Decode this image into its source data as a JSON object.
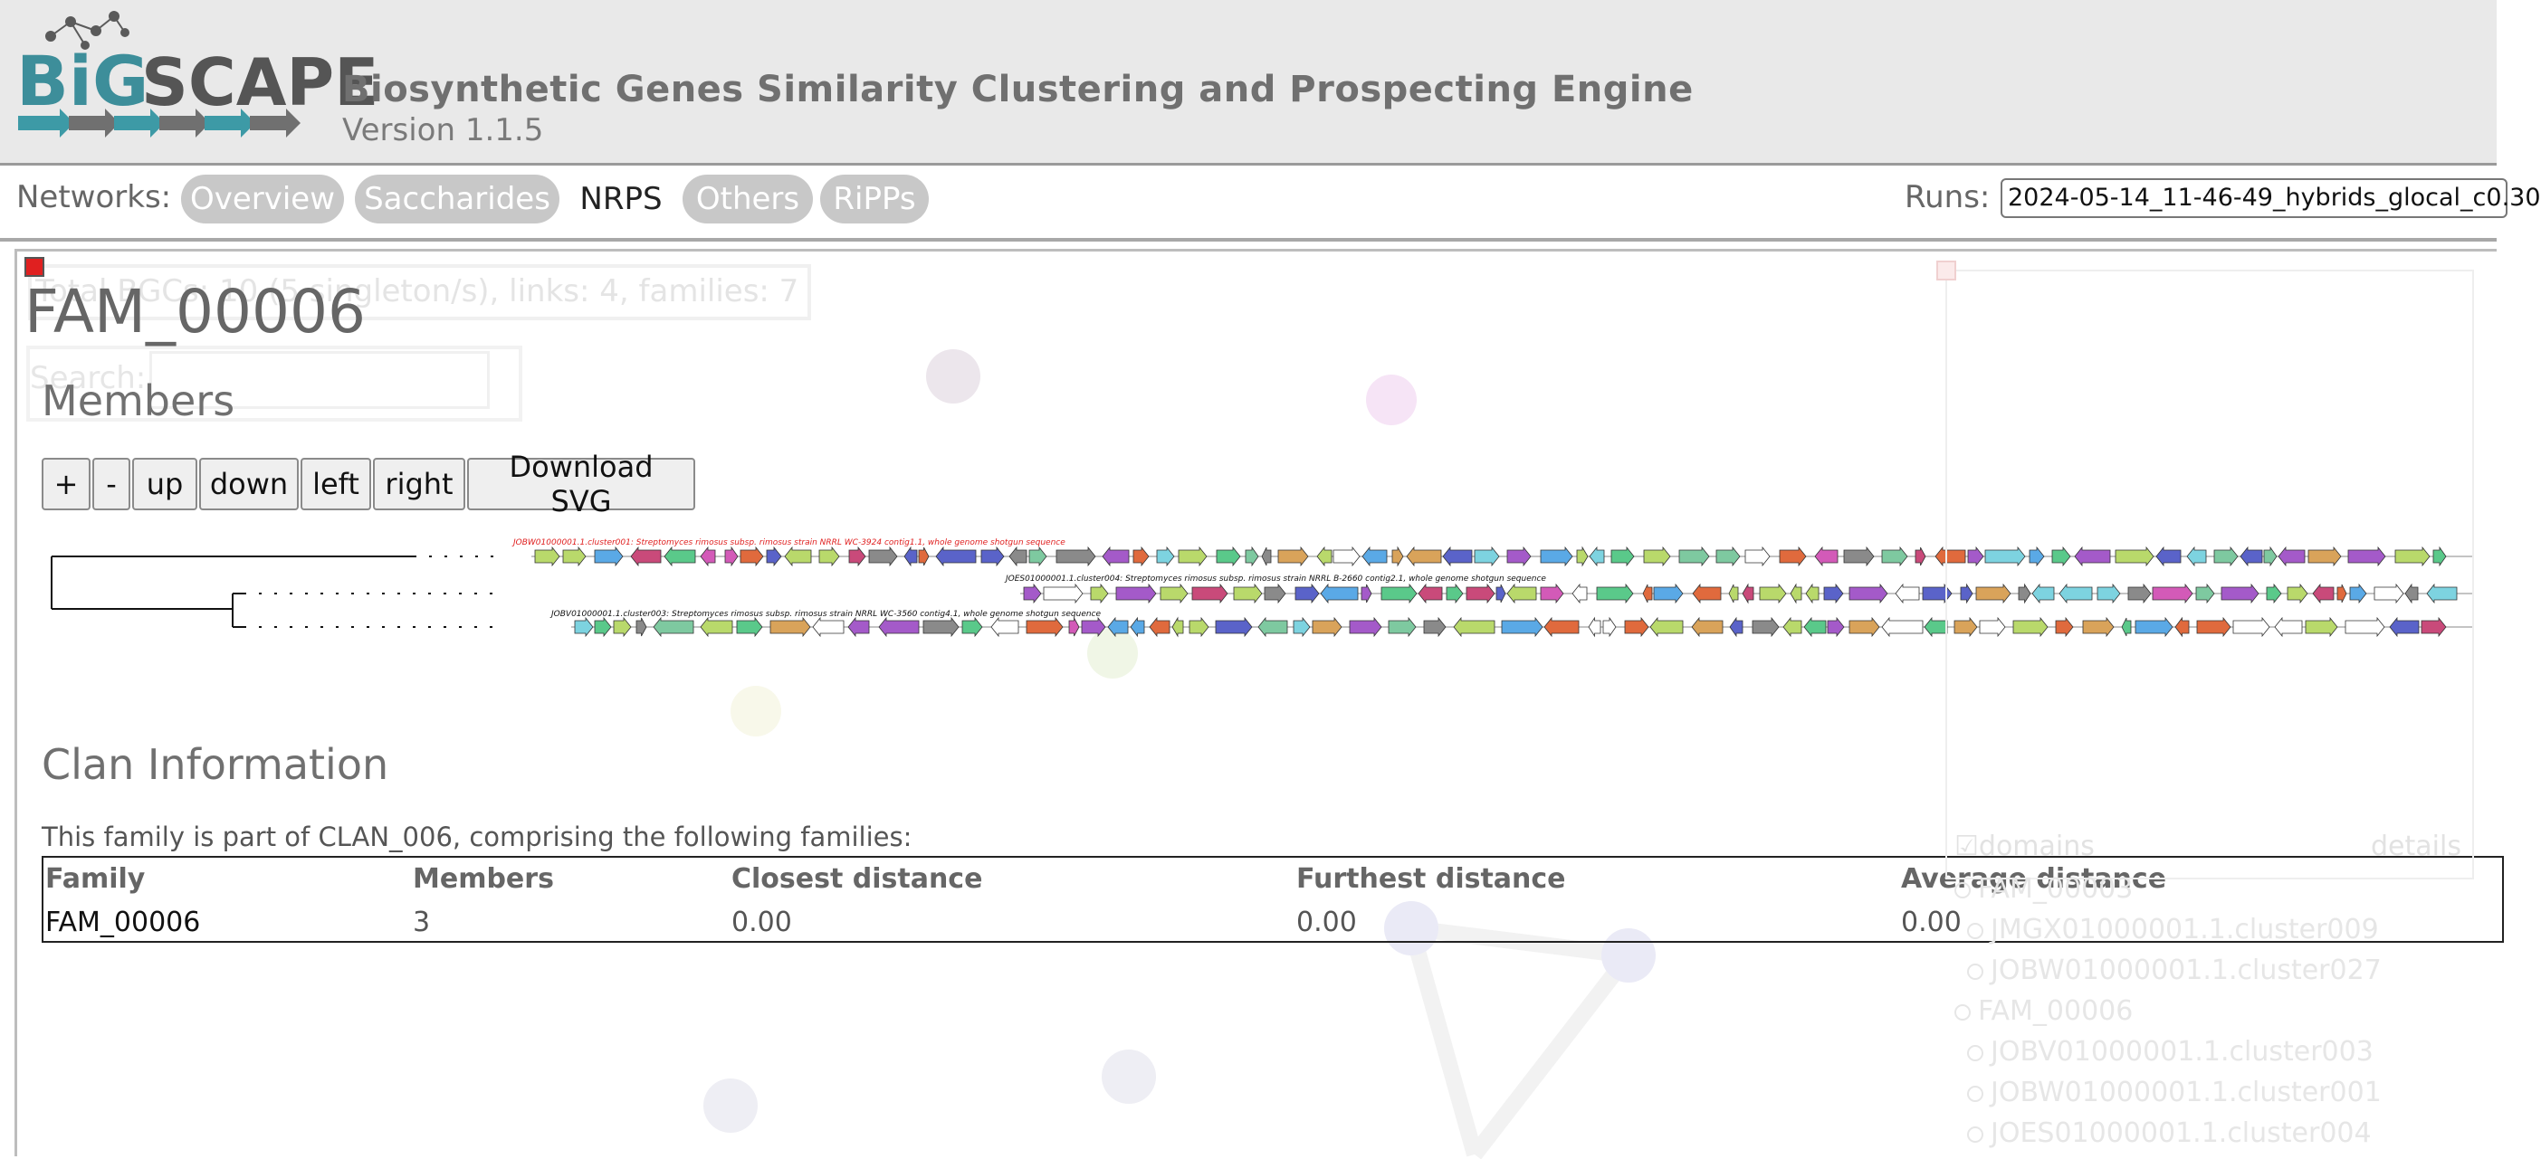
{
  "app": {
    "logo_text": "BiG SCAPE",
    "title": "Biosynthetic Genes Similarity Clustering and Prospecting Engine",
    "version": "Version 1.1.5"
  },
  "nav": {
    "label": "Networks:",
    "tabs": [
      {
        "label": "Overview",
        "active": false
      },
      {
        "label": "Saccharides",
        "active": false
      },
      {
        "label": "NRPS",
        "active": true
      },
      {
        "label": "Others",
        "active": false
      },
      {
        "label": "RiPPs",
        "active": false
      }
    ],
    "runs_label": "Runs:",
    "runs_value": "2024-05-14_11-46-49_hybrids_glocal_c0.30"
  },
  "background": {
    "stats": "Total BGCs: 10 (5 singleton/s), links: 4, families: 7",
    "search_label": "Search:"
  },
  "family": {
    "title": "FAM_00006",
    "members_heading": "Members",
    "controls": [
      "+",
      "-",
      "up",
      "down",
      "left",
      "right",
      "Download SVG"
    ],
    "members": [
      {
        "label": "JOBW01000001.1.cluster001: Streptomyces rimosus subsp. rimosus strain NRRL WC-3924 contig1.1, whole genome shotgun sequence",
        "highlight": true
      },
      {
        "label": "JOES01000001.1.cluster004: Streptomyces rimosus subsp. rimosus strain NRRL B-2660 contig2.1, whole genome shotgun sequence",
        "highlight": false
      },
      {
        "label": "JOBV01000001.1.cluster003: Streptomyces rimosus subsp. rimosus strain NRRL WC-3560 contig4.1, whole genome shotgun sequence",
        "highlight": false
      }
    ]
  },
  "clan": {
    "heading": "Clan Information",
    "description": "This family is part of CLAN_006, comprising the following families:",
    "columns": [
      "Family",
      "Members",
      "Closest distance",
      "Furthest distance",
      "Average distance"
    ],
    "rows": [
      [
        "FAM_00006",
        "3",
        "0.00",
        "0.00",
        "0.00"
      ]
    ]
  },
  "side_panel": {
    "domains_label": "domains",
    "details_label": "details",
    "tree": [
      {
        "label": "FAM_00003",
        "child": false
      },
      {
        "label": "JMGX01000001.1.cluster009",
        "child": true
      },
      {
        "label": "JOBW01000001.1.cluster027",
        "child": true
      },
      {
        "label": "FAM_00006",
        "child": false
      },
      {
        "label": "JOBV01000001.1.cluster003",
        "child": true
      },
      {
        "label": "JOBW01000001.1.cluster001",
        "child": true
      },
      {
        "label": "JOES01000001.1.cluster004",
        "child": true
      }
    ]
  },
  "colors": {
    "gene_palette": [
      "#7dd3e0",
      "#b9d96b",
      "#d9a35a",
      "#5aa9e6",
      "#a45ac9",
      "#5a63c9",
      "#c94a7a",
      "#5ac98a",
      "#e06a3d",
      "#8a8a8a",
      "#ffffff",
      "#7ec9a0",
      "#d35ab8"
    ],
    "highlight": "#e02020"
  }
}
